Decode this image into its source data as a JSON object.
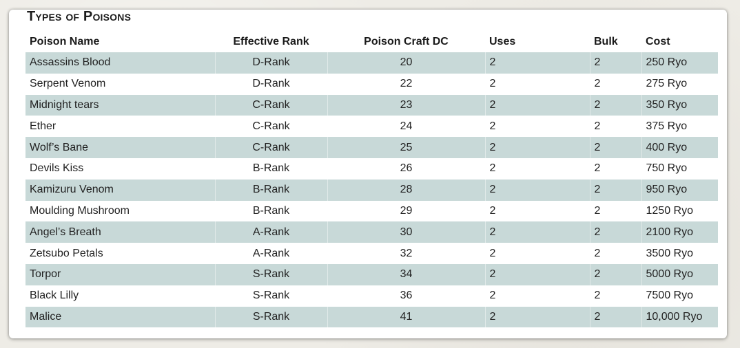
{
  "title": "Types of Poisons",
  "columns": {
    "name": "Poison Name",
    "rank": "Effective Rank",
    "dc": "Poison Craft DC",
    "uses": "Uses",
    "bulk": "Bulk",
    "cost": "Cost"
  },
  "rows": [
    {
      "name": "Assassins Blood",
      "rank": "D-Rank",
      "dc": "20",
      "uses": "2",
      "bulk": "2",
      "cost": "250 Ryo"
    },
    {
      "name": "Serpent Venom",
      "rank": "D-Rank",
      "dc": "22",
      "uses": "2",
      "bulk": "2",
      "cost": "275 Ryo"
    },
    {
      "name": "Midnight tears",
      "rank": "C-Rank",
      "dc": "23",
      "uses": "2",
      "bulk": "2",
      "cost": "350 Ryo"
    },
    {
      "name": "Ether",
      "rank": "C-Rank",
      "dc": "24",
      "uses": "2",
      "bulk": "2",
      "cost": "375 Ryo"
    },
    {
      "name": "Wolf’s Bane",
      "rank": "C-Rank",
      "dc": "25",
      "uses": "2",
      "bulk": "2",
      "cost": "400 Ryo"
    },
    {
      "name": "Devils Kiss",
      "rank": "B-Rank",
      "dc": "26",
      "uses": "2",
      "bulk": "2",
      "cost": "750 Ryo"
    },
    {
      "name": "Kamizuru Venom",
      "rank": "B-Rank",
      "dc": "28",
      "uses": "2",
      "bulk": "2",
      "cost": " 950 Ryo"
    },
    {
      "name": "Moulding Mushroom",
      "rank": "B-Rank",
      "dc": "29",
      "uses": "2",
      "bulk": "2",
      "cost": "1250 Ryo"
    },
    {
      "name": "Angel’s Breath",
      "rank": "A-Rank",
      "dc": "30",
      "uses": "2",
      "bulk": "2",
      "cost": "2100 Ryo"
    },
    {
      "name": "Zetsubo Petals",
      "rank": "A-Rank",
      "dc": "32",
      "uses": "2",
      "bulk": "2",
      "cost": "3500 Ryo"
    },
    {
      "name": "Torpor",
      "rank": "S-Rank",
      "dc": "34",
      "uses": "2",
      "bulk": "2",
      "cost": "5000 Ryo"
    },
    {
      "name": "Black Lilly",
      "rank": "S-Rank",
      "dc": "36",
      "uses": "2",
      "bulk": "2",
      "cost": "7500 Ryo"
    },
    {
      "name": "Malice",
      "rank": "S-Rank",
      "dc": "41",
      "uses": "2",
      "bulk": "2",
      "cost": "10,000 Ryo"
    }
  ]
}
